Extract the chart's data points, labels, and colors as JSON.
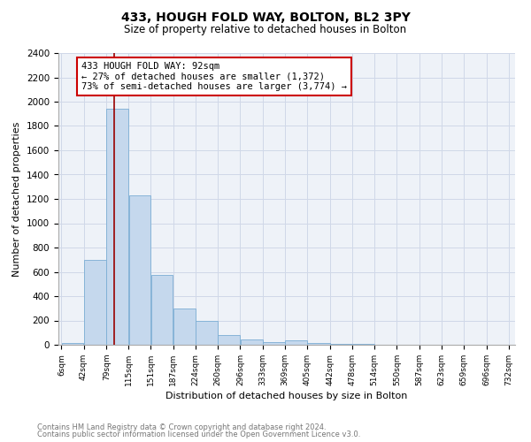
{
  "title": "433, HOUGH FOLD WAY, BOLTON, BL2 3PY",
  "subtitle": "Size of property relative to detached houses in Bolton",
  "xlabel": "Distribution of detached houses by size in Bolton",
  "ylabel": "Number of detached properties",
  "bar_color": "#c5d8ed",
  "bar_edge_color": "#7badd4",
  "grid_color": "#d0d8e8",
  "bg_color": "#eef2f8",
  "annotation_box_color": "#cc0000",
  "annotation_line_color": "#990000",
  "bins": [
    6,
    42,
    79,
    115,
    151,
    187,
    224,
    260,
    296,
    333,
    369,
    405,
    442,
    478,
    514,
    550,
    587,
    623,
    659,
    696,
    732
  ],
  "counts": [
    15,
    700,
    1940,
    1230,
    575,
    300,
    200,
    80,
    45,
    25,
    35,
    15,
    10,
    5,
    0,
    0,
    0,
    0,
    0,
    0
  ],
  "tick_labels": [
    "6sqm",
    "42sqm",
    "79sqm",
    "115sqm",
    "151sqm",
    "187sqm",
    "224sqm",
    "260sqm",
    "296sqm",
    "333sqm",
    "369sqm",
    "405sqm",
    "442sqm",
    "478sqm",
    "514sqm",
    "550sqm",
    "587sqm",
    "623sqm",
    "659sqm",
    "696sqm",
    "732sqm"
  ],
  "property_line_x": 92,
  "annotation_text_line1": "433 HOUGH FOLD WAY: 92sqm",
  "annotation_text_line2": "← 27% of detached houses are smaller (1,372)",
  "annotation_text_line3": "73% of semi-detached houses are larger (3,774) →",
  "footer_line1": "Contains HM Land Registry data © Crown copyright and database right 2024.",
  "footer_line2": "Contains public sector information licensed under the Open Government Licence v3.0.",
  "ylim": [
    0,
    2400
  ],
  "yticks": [
    0,
    200,
    400,
    600,
    800,
    1000,
    1200,
    1400,
    1600,
    1800,
    2000,
    2200,
    2400
  ],
  "title_fontsize": 10,
  "subtitle_fontsize": 8.5,
  "ylabel_fontsize": 8,
  "xlabel_fontsize": 8,
  "tick_fontsize": 6.5,
  "ytick_fontsize": 7.5,
  "ann_fontsize": 7.5,
  "footer_fontsize": 6
}
